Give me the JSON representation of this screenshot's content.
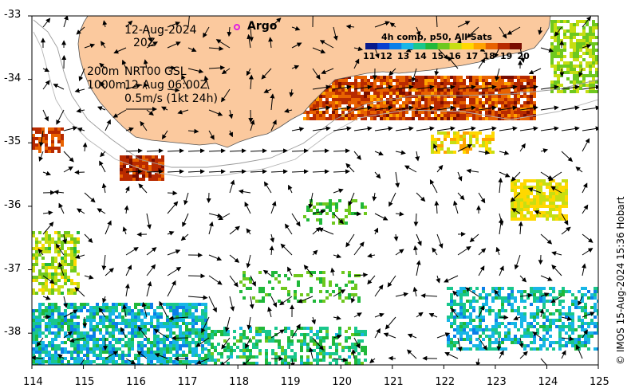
{
  "map": {
    "x_ticks": [
      "114",
      "115",
      "116",
      "117",
      "118",
      "119",
      "120",
      "121",
      "122",
      "123",
      "124",
      "125"
    ],
    "y_ticks": [
      "-33",
      "-34",
      "-35",
      "-36",
      "-37",
      "-38"
    ],
    "xlim": [
      114,
      125
    ],
    "ylim": [
      -38.5,
      -33
    ],
    "land_color": "#fbc99e",
    "no_data_color": "#ffffff"
  },
  "annotations": {
    "date": "12-Aug-2024",
    "time": "20Z",
    "contour_label": "200m",
    "contour_label_2": "1000m",
    "model": "NRT00 GSL",
    "model_time": "12-Aug 06:00Z",
    "scale_label": "0.5m/s (1kt 24h)"
  },
  "legend": {
    "argo_label": "Argo",
    "argo_color": "#e020e0"
  },
  "colorbar": {
    "title": "4h comp, p50, All Sats",
    "ticks": [
      "11",
      "12",
      "13",
      "14",
      "15",
      "16",
      "17",
      "18",
      "19",
      "20"
    ],
    "colors": [
      "#081a8c",
      "#0a3fd0",
      "#0b7fe8",
      "#17b6e6",
      "#19c78c",
      "#20b83a",
      "#6ec81e",
      "#c7de12",
      "#ffd800",
      "#ffa300",
      "#e86200",
      "#b82a00",
      "#7a0d00"
    ]
  },
  "credit": "© IMOS 15-Aug-2024 15:36 Hobart"
}
